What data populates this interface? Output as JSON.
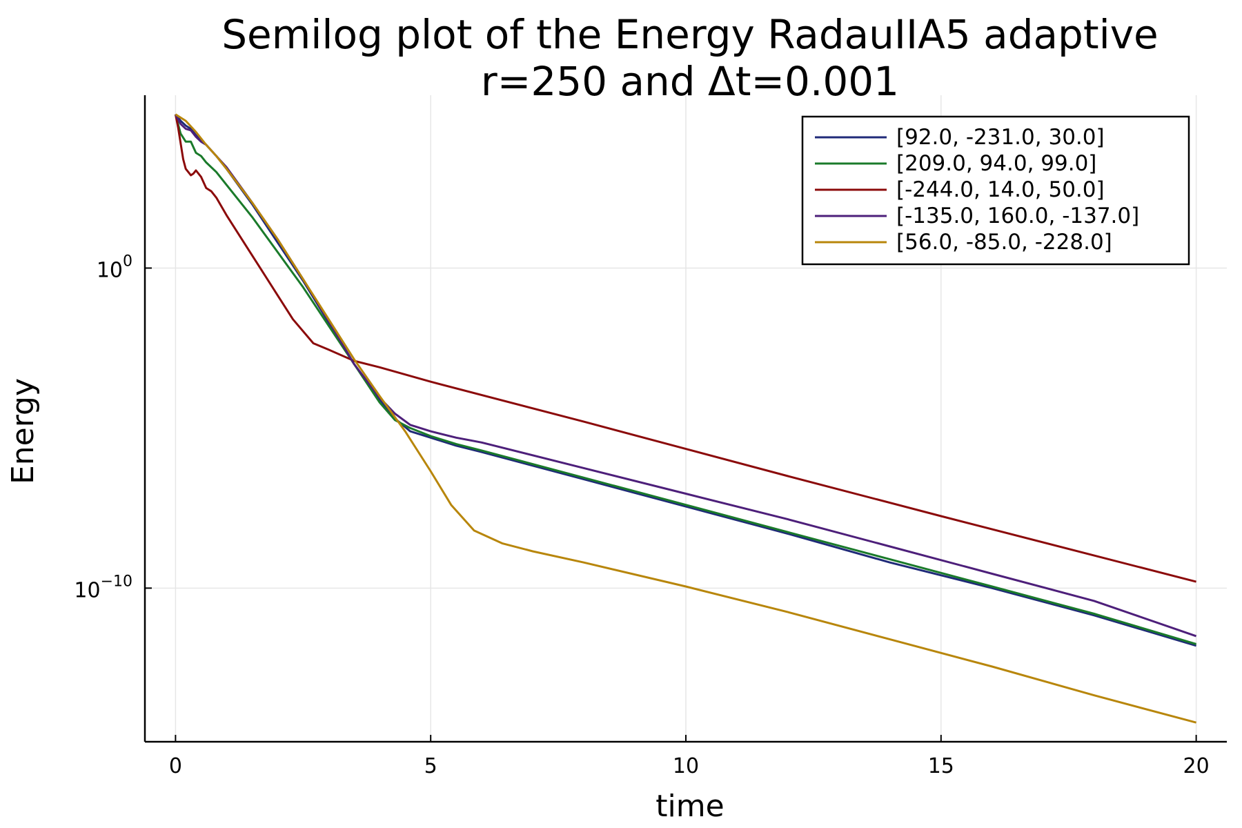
{
  "chart_data": {
    "type": "line",
    "title": "Semilog plot of the Energy RadauIIA5 adaptive",
    "subtitle": "r=250 and Δt=0.001",
    "xlabel": "time",
    "ylabel": "Energy",
    "yscale": "log10",
    "xlim": [
      -0.6,
      20.6
    ],
    "ylim_log10": [
      -14.8,
      5.4
    ],
    "xticks": [
      0,
      5,
      10,
      15,
      20
    ],
    "xtick_labels": [
      "0",
      "5",
      "10",
      "15",
      "20"
    ],
    "yticks_log10": [
      0,
      -10
    ],
    "ytick_labels": [
      {
        "base": "10",
        "exp": "0"
      },
      {
        "base": "10",
        "exp": "−10"
      }
    ],
    "grid": true,
    "legend_position": "top-right",
    "series": [
      {
        "name": "[92.0, -231.0, 30.0]",
        "color": "#1f2a78",
        "x": [
          0,
          0.1,
          0.2,
          0.3,
          0.4,
          0.5,
          0.6,
          0.8,
          1.0,
          1.5,
          2.0,
          2.5,
          3.0,
          3.5,
          4.0,
          4.3,
          4.6,
          5.0,
          5.5,
          6,
          8,
          10,
          12,
          14,
          16,
          18,
          20
        ],
        "log10_y": [
          4.8,
          4.6,
          4.45,
          4.35,
          4.15,
          4.0,
          3.85,
          3.5,
          3.1,
          2.0,
          0.8,
          -0.4,
          -1.7,
          -3.0,
          -4.1,
          -4.7,
          -5.1,
          -5.3,
          -5.55,
          -5.75,
          -6.6,
          -7.45,
          -8.3,
          -9.2,
          -10.0,
          -10.85,
          -11.8
        ]
      },
      {
        "name": "[209.0, 94.0, 99.0]",
        "color": "#1a7a2a",
        "x": [
          0,
          0.1,
          0.2,
          0.3,
          0.4,
          0.5,
          0.6,
          0.8,
          1.0,
          1.5,
          2.0,
          2.5,
          3.0,
          3.5,
          4.0,
          4.3,
          4.6,
          5.0,
          5.5,
          6,
          8,
          10,
          12,
          14,
          16,
          18,
          20
        ],
        "log10_y": [
          4.8,
          4.2,
          3.95,
          3.95,
          3.6,
          3.5,
          3.3,
          3.0,
          2.6,
          1.6,
          0.5,
          -0.6,
          -1.8,
          -3.0,
          -4.2,
          -4.75,
          -5.0,
          -5.25,
          -5.5,
          -5.7,
          -6.55,
          -7.4,
          -8.25,
          -9.1,
          -9.95,
          -10.8,
          -11.75
        ]
      },
      {
        "name": "[-244.0, 14.0, 50.0]",
        "color": "#8b0a0a",
        "x": [
          0,
          0.05,
          0.1,
          0.15,
          0.2,
          0.25,
          0.3,
          0.35,
          0.4,
          0.5,
          0.6,
          0.7,
          0.8,
          1.0,
          1.5,
          2.0,
          2.3,
          2.7,
          3.0,
          3.5,
          4,
          5,
          8,
          10,
          12,
          15,
          20
        ],
        "log10_y": [
          4.8,
          4.4,
          3.9,
          3.4,
          3.1,
          3.0,
          2.9,
          2.95,
          3.05,
          2.85,
          2.5,
          2.4,
          2.2,
          1.65,
          0.4,
          -0.85,
          -1.6,
          -2.35,
          -2.55,
          -2.9,
          -3.1,
          -3.55,
          -4.8,
          -5.65,
          -6.5,
          -7.75,
          -9.8
        ]
      },
      {
        "name": "[-135.0, 160.0, -137.0]",
        "color": "#4d1f7a",
        "x": [
          0,
          0.1,
          0.2,
          0.3,
          0.4,
          0.5,
          0.6,
          0.8,
          1.0,
          1.5,
          2.0,
          2.5,
          3.0,
          3.5,
          4.0,
          4.3,
          4.6,
          5.0,
          5.5,
          6,
          8,
          10,
          12,
          14,
          16,
          18,
          20
        ],
        "log10_y": [
          4.8,
          4.5,
          4.35,
          4.3,
          4.1,
          3.95,
          3.85,
          3.5,
          3.15,
          2.05,
          0.9,
          -0.35,
          -1.65,
          -3.0,
          -4.05,
          -4.55,
          -4.9,
          -5.1,
          -5.3,
          -5.45,
          -6.25,
          -7.05,
          -7.85,
          -8.7,
          -9.55,
          -10.4,
          -11.5
        ]
      },
      {
        "name": "[56.0, -85.0, -228.0]",
        "color": "#b8860b",
        "x": [
          0,
          0.2,
          0.4,
          0.6,
          0.8,
          1.0,
          1.5,
          2.0,
          2.5,
          3.0,
          3.5,
          4.0,
          4.5,
          5.0,
          5.4,
          5.85,
          6.4,
          7,
          8,
          10,
          12,
          14,
          16,
          18,
          20
        ],
        "log10_y": [
          4.8,
          4.6,
          4.25,
          3.85,
          3.5,
          3.1,
          2.05,
          0.9,
          -0.35,
          -1.6,
          -2.85,
          -4.0,
          -5.1,
          -6.35,
          -7.4,
          -8.2,
          -8.6,
          -8.85,
          -9.2,
          -9.95,
          -10.75,
          -11.6,
          -12.45,
          -13.35,
          -14.2
        ]
      }
    ]
  }
}
